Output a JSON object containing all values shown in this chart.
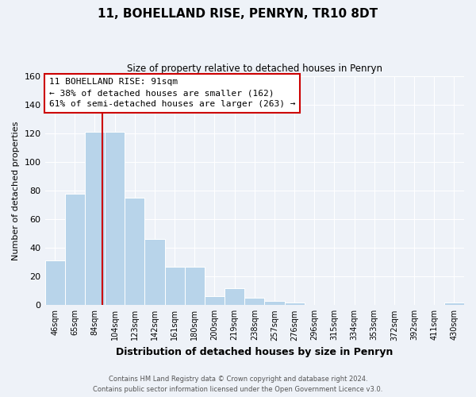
{
  "title": "11, BOHELLAND RISE, PENRYN, TR10 8DT",
  "subtitle": "Size of property relative to detached houses in Penryn",
  "xlabel": "Distribution of detached houses by size in Penryn",
  "ylabel": "Number of detached properties",
  "footer_line1": "Contains HM Land Registry data © Crown copyright and database right 2024.",
  "footer_line2": "Contains public sector information licensed under the Open Government Licence v3.0.",
  "bar_labels": [
    "46sqm",
    "65sqm",
    "84sqm",
    "104sqm",
    "123sqm",
    "142sqm",
    "161sqm",
    "180sqm",
    "200sqm",
    "219sqm",
    "238sqm",
    "257sqm",
    "276sqm",
    "296sqm",
    "315sqm",
    "334sqm",
    "353sqm",
    "372sqm",
    "392sqm",
    "411sqm",
    "430sqm"
  ],
  "bar_values": [
    31,
    78,
    121,
    121,
    75,
    46,
    27,
    27,
    6,
    12,
    5,
    3,
    2,
    0,
    0,
    0,
    0,
    0,
    0,
    0,
    2
  ],
  "bar_color": "#b8d4ea",
  "ylim": [
    0,
    160
  ],
  "yticks": [
    0,
    20,
    40,
    60,
    80,
    100,
    120,
    140,
    160
  ],
  "property_bar_index": 2,
  "annotation_title": "11 BOHELLAND RISE: 91sqm",
  "annotation_line1": "← 38% of detached houses are smaller (162)",
  "annotation_line2": "61% of semi-detached houses are larger (263) →",
  "box_edge_color": "#cc0000",
  "vline_color": "#cc0000",
  "background_color": "#eef2f8",
  "plot_background": "#eef2f8",
  "grid_color": "#ffffff"
}
